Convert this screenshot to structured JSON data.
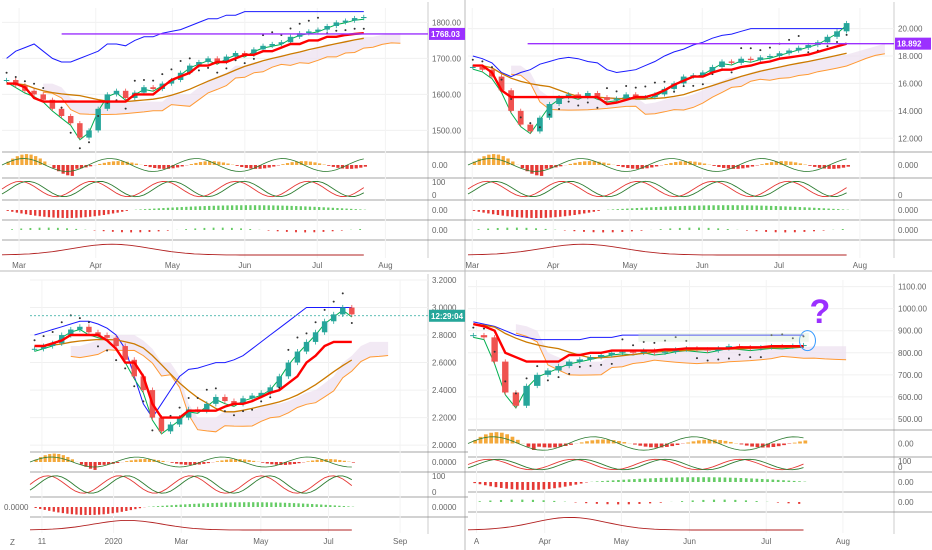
{
  "chart_data": [
    {
      "type": "line",
      "x_ticks": [
        "Mar",
        "Apr",
        "May",
        "Jun",
        "Jul",
        "Aug"
      ],
      "y_ticks": [
        "1800.00",
        "1700.00",
        "1600.00",
        "1500.00"
      ],
      "ylim": [
        1440,
        1840
      ],
      "price_tag": "1768.03",
      "price_tag_value": 1768,
      "close": [
        1640,
        1625,
        1610,
        1600,
        1585,
        1560,
        1540,
        1520,
        1480,
        1500,
        1560,
        1600,
        1610,
        1590,
        1605,
        1620,
        1615,
        1630,
        1640,
        1660,
        1680,
        1690,
        1700,
        1690,
        1705,
        1715,
        1710,
        1725,
        1735,
        1740,
        1745,
        1760,
        1770,
        1775,
        1780,
        1790,
        1800,
        1805,
        1812,
        1815
      ],
      "kijun": [
        1630,
        1630,
        1620,
        1590,
        1580,
        1580,
        1580,
        1580,
        1580,
        1580,
        1580,
        1580,
        1580,
        1580,
        1600,
        1600,
        1600,
        1620,
        1640,
        1650,
        1660,
        1680,
        1680,
        1690,
        1690,
        1700,
        1710,
        1710,
        1720,
        1720,
        1730,
        1740,
        1740,
        1750,
        1750,
        1760,
        1760,
        1765,
        1768,
        1770
      ],
      "upper_band": [
        1700,
        1720,
        1730,
        1740,
        1720,
        1700,
        1690,
        1690,
        1700,
        1710,
        1720,
        1740,
        1740,
        1735,
        1750,
        1760,
        1760,
        1770,
        1775,
        1780,
        1790,
        1800,
        1810,
        1810,
        1820,
        1820,
        1830,
        1830,
        1830,
        1830,
        1830,
        1830,
        1830,
        1830,
        1830,
        1830,
        1830,
        1830,
        1830,
        1830
      ],
      "macd_ticks": [
        "0.00"
      ],
      "stoch_ticks": [
        "100",
        "0"
      ],
      "hist_ticks": [
        "0.00"
      ],
      "osc_ticks": [
        "0.00"
      ]
    },
    {
      "type": "line",
      "x_ticks": [
        "Mar",
        "Apr",
        "May",
        "Jun",
        "Jul",
        "Aug"
      ],
      "y_ticks": [
        "20.000",
        "18.000",
        "16.000",
        "14.000",
        "12.000"
      ],
      "ylim": [
        11,
        21.5
      ],
      "price_tag": "18.892",
      "price_tag_value": 18.9,
      "close": [
        17.2,
        17.0,
        16.5,
        15.5,
        14.0,
        13.0,
        12.5,
        13.5,
        14.5,
        15.0,
        15.2,
        15.0,
        15.3,
        15.0,
        14.8,
        14.9,
        15.2,
        15.0,
        15.0,
        15.2,
        15.6,
        16.0,
        16.5,
        16.6,
        16.8,
        17.2,
        17.6,
        17.5,
        17.8,
        17.7,
        17.9,
        18.0,
        18.2,
        18.4,
        18.6,
        18.8,
        19.0,
        19.4,
        19.8,
        20.4
      ],
      "kijun": [
        17.3,
        17.3,
        16.8,
        15.5,
        15.0,
        15.0,
        15.0,
        15.0,
        15.0,
        15.0,
        15.0,
        15.0,
        15.0,
        15.0,
        14.5,
        14.6,
        14.8,
        15.0,
        15.0,
        15.2,
        15.5,
        15.9,
        16.2,
        16.5,
        16.5,
        16.8,
        17.0,
        17.0,
        17.2,
        17.3,
        17.5,
        17.6,
        17.8,
        17.9,
        18.0,
        18.1,
        18.3,
        18.5,
        18.7,
        18.9
      ],
      "upper_band": [
        18.0,
        17.8,
        17.5,
        16.8,
        16.5,
        16.8,
        17.0,
        17.4,
        17.6,
        17.8,
        17.9,
        17.8,
        17.6,
        17.5,
        17.0,
        16.8,
        16.9,
        17.0,
        17.3,
        17.6,
        18.0,
        18.3,
        18.5,
        18.8,
        19.0,
        19.3,
        19.5,
        19.6,
        19.8,
        20.0,
        20.0,
        20.0,
        20.0,
        20.0,
        20.0,
        20.0,
        20.0,
        20.0,
        20.0,
        20.0
      ],
      "macd_ticks": [
        "0.000"
      ],
      "stoch_ticks": [
        "0"
      ],
      "hist_ticks": [
        "0.000"
      ],
      "osc_ticks": [
        "0.000"
      ]
    },
    {
      "type": "line",
      "x_ticks": [
        "11",
        "2020",
        "Mar",
        "May",
        "Jul",
        "Sep"
      ],
      "y_ticks": [
        "3.2000",
        "3.0000",
        "2.8000",
        "2.6000",
        "2.4000",
        "2.2000",
        "2.0000"
      ],
      "ylim": [
        1.95,
        3.2
      ],
      "price_tag": "12:29:04",
      "price_tag_value": 2.94,
      "close": [
        2.7,
        2.72,
        2.74,
        2.8,
        2.84,
        2.86,
        2.82,
        2.8,
        2.78,
        2.72,
        2.62,
        2.5,
        2.4,
        2.2,
        2.1,
        2.15,
        2.2,
        2.26,
        2.25,
        2.3,
        2.35,
        2.32,
        2.3,
        2.34,
        2.36,
        2.38,
        2.42,
        2.5,
        2.6,
        2.68,
        2.75,
        2.82,
        2.9,
        2.95,
        3.0,
        2.95
      ],
      "kijun": [
        2.72,
        2.72,
        2.74,
        2.76,
        2.8,
        2.8,
        2.8,
        2.8,
        2.76,
        2.7,
        2.6,
        2.6,
        2.5,
        2.3,
        2.2,
        2.2,
        2.2,
        2.25,
        2.25,
        2.25,
        2.25,
        2.28,
        2.3,
        2.3,
        2.32,
        2.35,
        2.38,
        2.4,
        2.45,
        2.5,
        2.6,
        2.65,
        2.72,
        2.75,
        2.75,
        2.75
      ],
      "upper_band": [
        2.8,
        2.82,
        2.84,
        2.86,
        2.88,
        2.9,
        2.9,
        2.88,
        2.85,
        2.8,
        2.7,
        2.5,
        2.3,
        2.2,
        2.3,
        2.4,
        2.5,
        2.55,
        2.56,
        2.58,
        2.6,
        2.6,
        2.62,
        2.65,
        2.7,
        2.75,
        2.8,
        2.85,
        2.9,
        2.95,
        3.0,
        3.0,
        3.0,
        3.0,
        3.0,
        3.0
      ],
      "macd_ticks": [
        "0.0000"
      ],
      "stoch_ticks": [
        "100",
        "0"
      ],
      "hist_ticks": [
        "0.0000"
      ],
      "hist_left_label": "0.0000"
    },
    {
      "type": "line",
      "x_ticks": [
        "A",
        "Apr",
        "May",
        "Jun",
        "Jul",
        "Aug"
      ],
      "y_ticks": [
        "1100.00",
        "1000.00",
        "900.00",
        "800.00",
        "700.00",
        "600.00",
        "500.00"
      ],
      "ylim": [
        450,
        1130
      ],
      "annotation": "?",
      "close": [
        880,
        870,
        760,
        620,
        560,
        650,
        700,
        720,
        740,
        760,
        770,
        780,
        790,
        800,
        805,
        800,
        810,
        800,
        805,
        815,
        820,
        815,
        810,
        820,
        830,
        825,
        820,
        825,
        830,
        828,
        832,
        835
      ],
      "kijun": [
        930,
        920,
        900,
        800,
        780,
        760,
        760,
        760,
        760,
        790,
        790,
        800,
        800,
        810,
        810,
        810,
        810,
        810,
        815,
        815,
        820,
        820,
        820,
        820,
        820,
        825,
        825,
        825,
        830,
        830,
        830,
        830
      ],
      "upper_band": [
        940,
        930,
        920,
        900,
        880,
        870,
        860,
        860,
        860,
        860,
        860,
        870,
        870,
        870,
        880,
        880,
        880,
        880,
        880,
        880,
        880,
        880,
        880,
        880,
        880,
        880,
        880,
        880,
        880,
        880,
        880,
        880
      ],
      "macd_ticks": [
        "0.00"
      ],
      "stoch_ticks": [
        "100",
        "0"
      ],
      "hist_ticks": [
        "0.00"
      ],
      "osc_ticks": [
        "0.00"
      ]
    }
  ],
  "footer": {
    "bottom_left_label": "Z"
  },
  "colors": {
    "kijun": "#ff0000",
    "tenkan": "#00b050",
    "upper_band": "#1a1aff",
    "cloud_edge": "#ff9933",
    "cloud_fill": "#ece0f0",
    "purple": "#9b30ff",
    "teal_tag": "#26a69a",
    "bull": "#26a69a",
    "bear": "#ef5350",
    "hist_pos": "#66cc66",
    "hist_neg": "#e53935"
  }
}
